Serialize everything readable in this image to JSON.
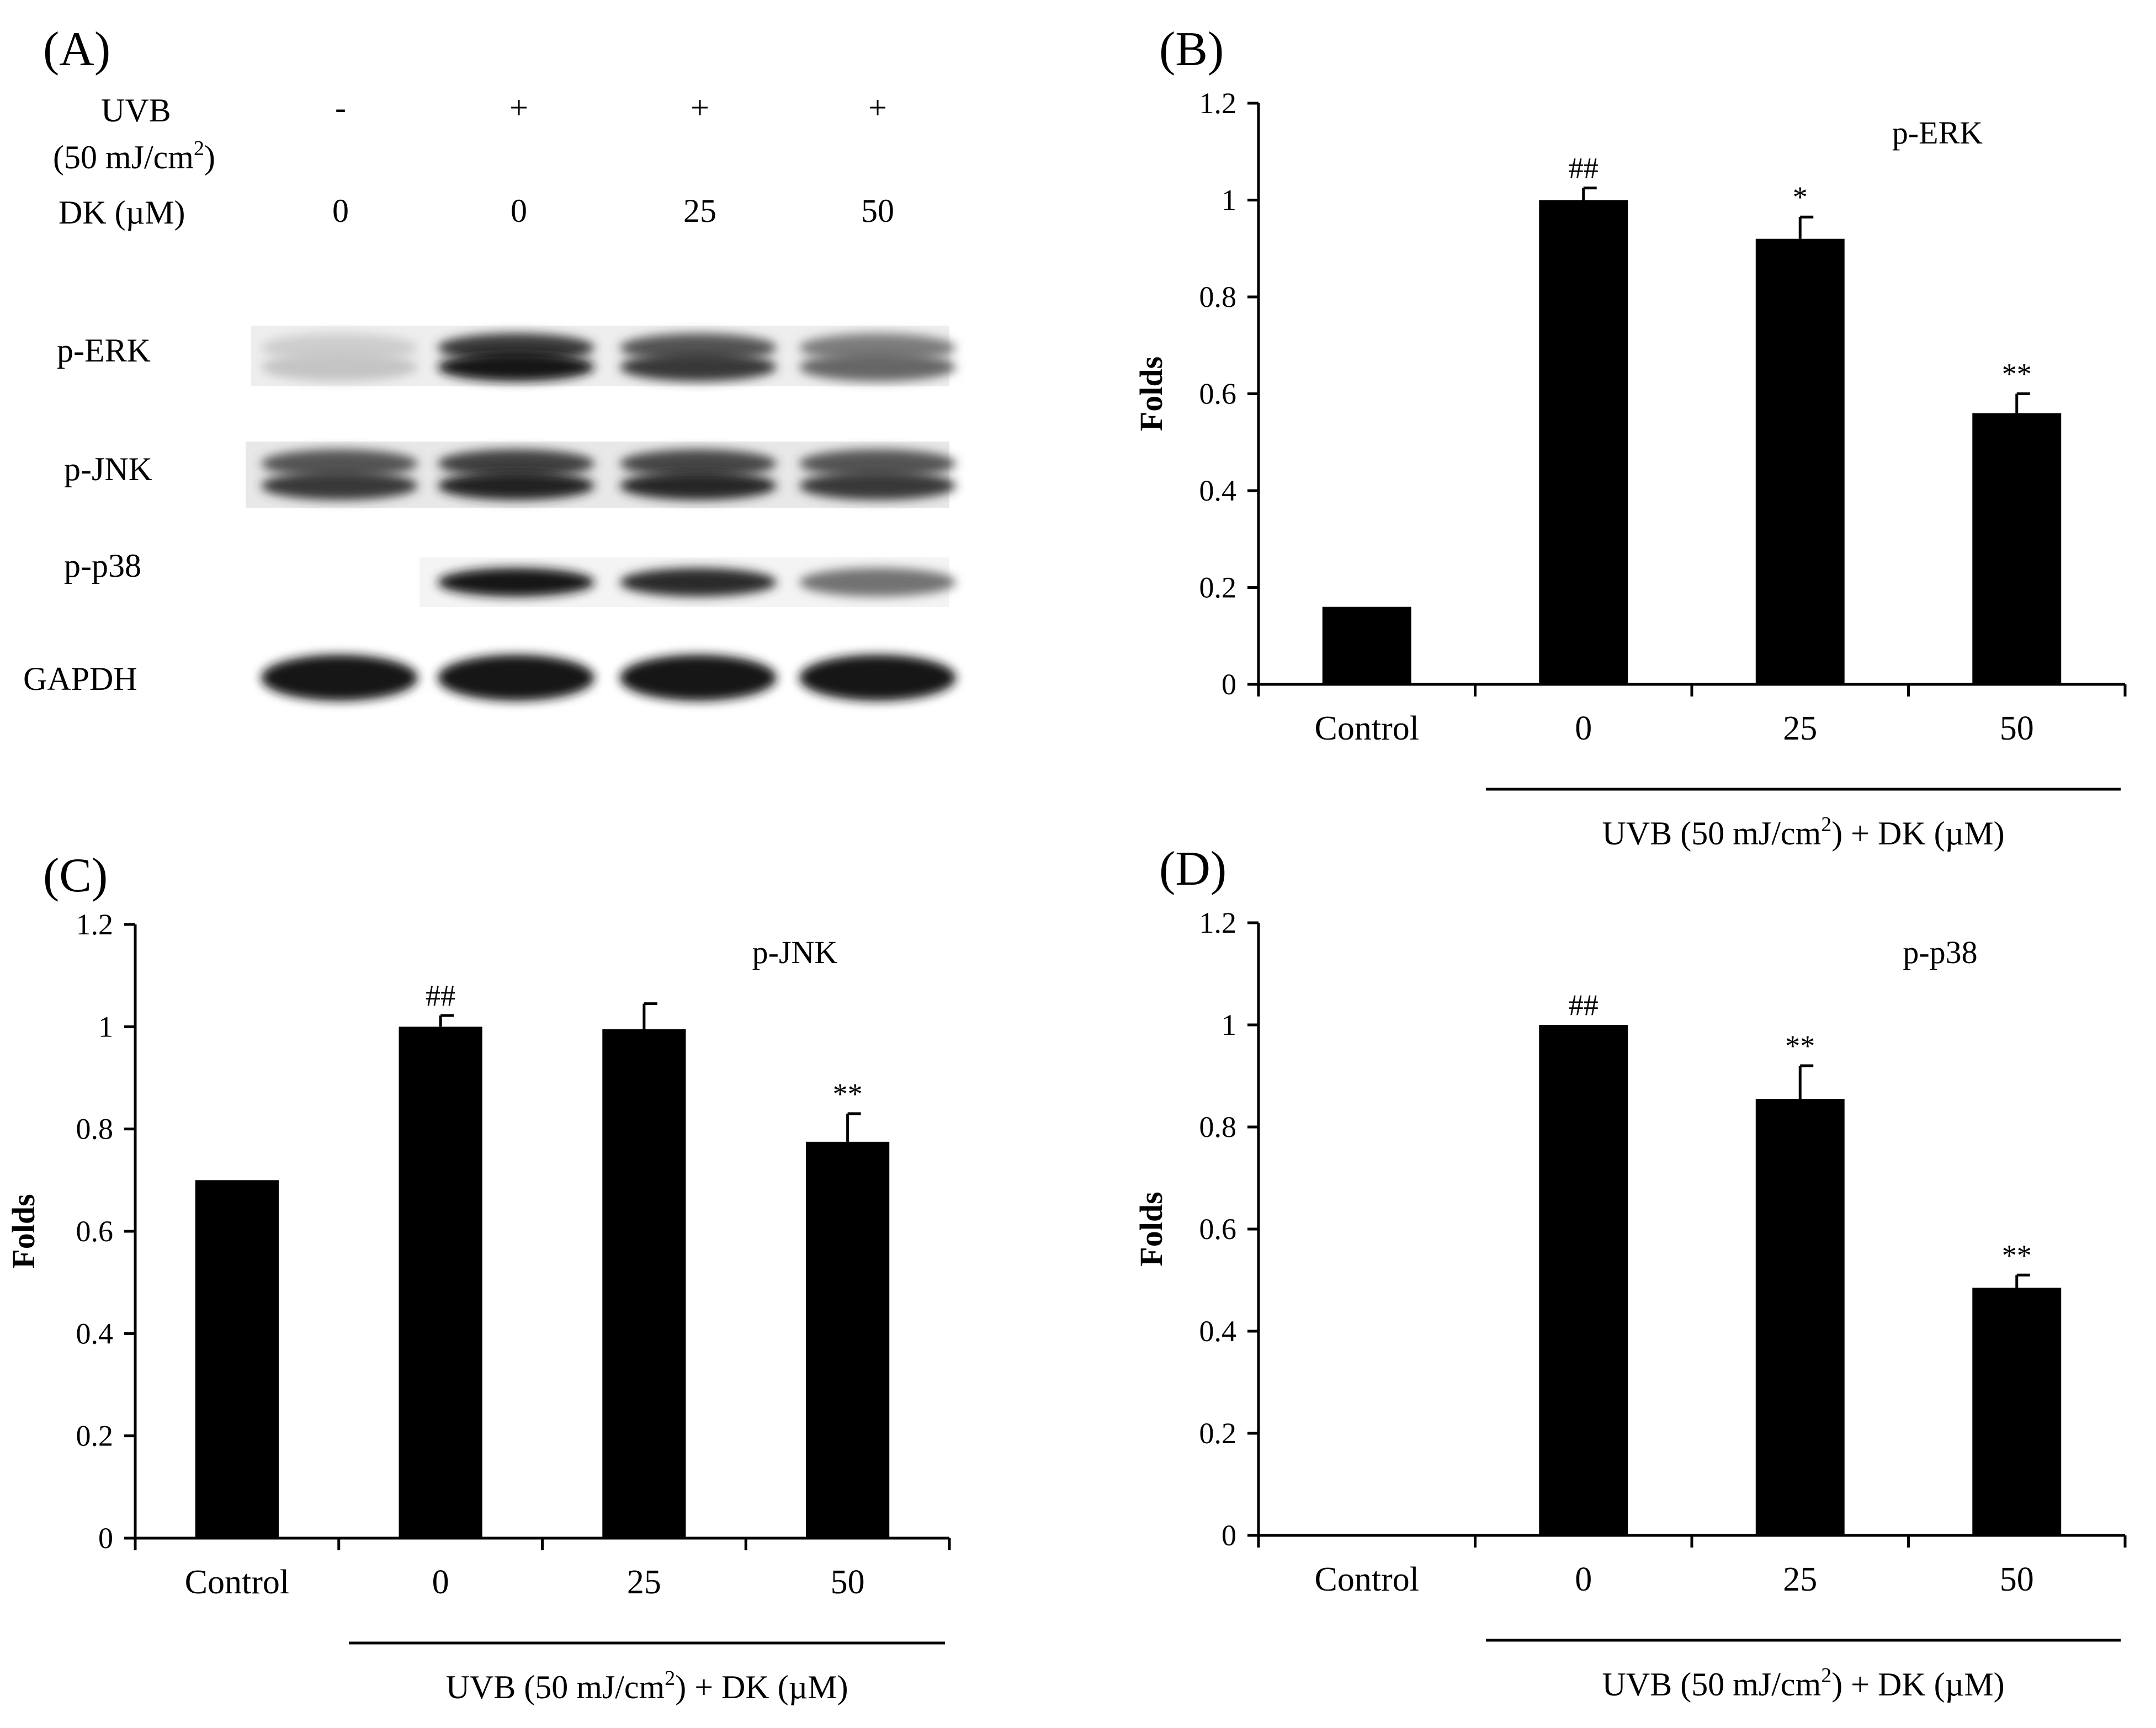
{
  "panel_a": {
    "label": "(A)",
    "uvb_label_line1": "UVB",
    "uvb_label_line2": "(50 mJ/cm",
    "uvb_label_sup": "2",
    "uvb_label_close": ")",
    "dk_label": "DK (µM)",
    "uvb_values": [
      "-",
      "+",
      "+",
      "+"
    ],
    "dk_values": [
      "0",
      "0",
      "25",
      "50"
    ],
    "blot_labels": [
      "p-ERK",
      "p-JNK",
      "p-p38",
      "GAPDH"
    ],
    "band_intensity": {
      "p-ERK": [
        0.25,
        1.0,
        0.85,
        0.65
      ],
      "p-JNK": [
        0.85,
        0.95,
        0.92,
        0.85
      ],
      "p-p38": [
        0.0,
        1.0,
        0.9,
        0.6
      ],
      "GAPDH": [
        1.0,
        1.0,
        1.0,
        1.0
      ]
    }
  },
  "chart_data": [
    {
      "panel": "(B)",
      "type": "bar",
      "title": "p-ERK",
      "categories": [
        "Control",
        "0",
        "25",
        "50"
      ],
      "values": [
        0.16,
        1.0,
        0.92,
        0.56
      ],
      "errors": [
        0.0,
        0.025,
        0.045,
        0.04
      ],
      "annotations": [
        "",
        "##",
        "*",
        "**"
      ],
      "ylabel": "Folds",
      "xlabel": "UVB (50 mJ/cm",
      "xlabel_sup": "2",
      "xlabel_tail": ")  + DK (µM)",
      "ylim": [
        0,
        1.2
      ],
      "yticks": [
        "0",
        "0.2",
        "0.4",
        "0.6",
        "0.8",
        "1",
        "1.2"
      ]
    },
    {
      "panel": "(C)",
      "type": "bar",
      "title": "p-JNK",
      "categories": [
        "Control",
        "0",
        "25",
        "50"
      ],
      "values": [
        0.7,
        1.0,
        0.995,
        0.775
      ],
      "errors": [
        0.0,
        0.022,
        0.05,
        0.055
      ],
      "annotations": [
        "",
        "##",
        "",
        "**"
      ],
      "ylabel": "Folds",
      "xlabel": "UVB (50 mJ/cm",
      "xlabel_sup": "2",
      "xlabel_tail": ")  + DK (µM)",
      "ylim": [
        0,
        1.2
      ],
      "yticks": [
        "0",
        "0.2",
        "0.4",
        "0.6",
        "0.8",
        "1",
        "1.2"
      ]
    },
    {
      "panel": "(D)",
      "type": "bar",
      "title": "p-p38",
      "categories": [
        "Control",
        "0",
        "25",
        "50"
      ],
      "values": [
        0.0,
        1.0,
        0.855,
        0.485
      ],
      "errors": [
        0.0,
        0.0,
        0.065,
        0.025
      ],
      "annotations": [
        "",
        "##",
        "**",
        "**"
      ],
      "ylabel": "Folds",
      "xlabel": "UVB (50 mJ/cm",
      "xlabel_sup": "2",
      "xlabel_tail": ")  + DK (µM)",
      "ylim": [
        0,
        1.2
      ],
      "yticks": [
        "0",
        "0.2",
        "0.4",
        "0.6",
        "0.8",
        "1",
        "1.2"
      ]
    }
  ]
}
